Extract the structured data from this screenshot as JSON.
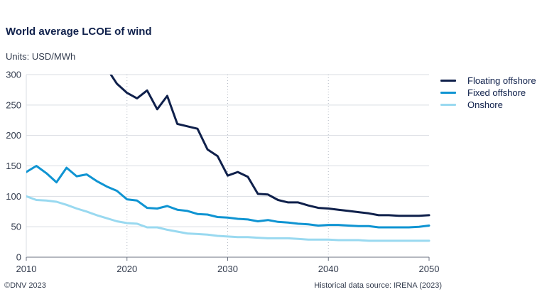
{
  "title": "World average LCOE of wind",
  "units": "Units: USD/MWh",
  "footer": {
    "copyright": "©DNV 2023",
    "source": "Historical data source: IRENA (2023)"
  },
  "chart_data": {
    "type": "line",
    "title": "World average LCOE of wind",
    "xlabel": "",
    "ylabel": "",
    "xlim": [
      2010,
      2050
    ],
    "ylim": [
      0,
      300
    ],
    "x_ticks": [
      2010,
      2020,
      2030,
      2040,
      2050
    ],
    "y_ticks": [
      0,
      50,
      100,
      150,
      200,
      250,
      300
    ],
    "x_tick_labels": [
      "2010",
      "2020",
      "2030",
      "2040",
      "2050"
    ],
    "y_tick_labels": [
      "0",
      "50",
      "100",
      "150",
      "200",
      "250",
      "300"
    ],
    "grid": "horizontal solid, vertical dotted at decades",
    "legend_position": "right",
    "series": [
      {
        "name": "Floating offshore",
        "color": "#0f204b",
        "x": [
          2018.4,
          2019,
          2020,
          2021,
          2022,
          2023,
          2024,
          2025,
          2026,
          2027,
          2028,
          2029,
          2030,
          2031,
          2032,
          2033,
          2034,
          2035,
          2036,
          2037,
          2038,
          2039,
          2040,
          2041,
          2042,
          2043,
          2044,
          2045,
          2046,
          2047,
          2048,
          2049,
          2050
        ],
        "y": [
          300,
          285,
          270,
          261,
          274,
          243,
          265,
          219,
          215,
          211,
          177,
          166,
          134,
          140,
          132,
          104,
          103,
          94,
          90,
          90,
          85,
          81,
          80,
          78,
          76,
          74,
          72,
          69,
          69,
          68,
          68,
          68,
          69
        ]
      },
      {
        "name": "Fixed offshore",
        "color": "#0f94d2",
        "x": [
          2010,
          2011,
          2012,
          2013,
          2014,
          2015,
          2016,
          2017,
          2018,
          2019,
          2020,
          2021,
          2022,
          2023,
          2024,
          2025,
          2026,
          2027,
          2028,
          2029,
          2030,
          2031,
          2032,
          2033,
          2034,
          2035,
          2036,
          2037,
          2038,
          2039,
          2040,
          2041,
          2042,
          2043,
          2044,
          2045,
          2046,
          2047,
          2048,
          2049,
          2050
        ],
        "y": [
          140,
          150,
          138,
          123,
          147,
          133,
          136,
          125,
          116,
          109,
          95,
          93,
          81,
          80,
          84,
          78,
          76,
          71,
          70,
          66,
          65,
          63,
          62,
          59,
          61,
          58,
          57,
          55,
          54,
          52,
          53,
          53,
          52,
          51,
          51,
          49,
          49,
          49,
          49,
          50,
          52
        ]
      },
      {
        "name": "Onshore",
        "color": "#99d9f0",
        "x": [
          2010,
          2011,
          2012,
          2013,
          2014,
          2015,
          2016,
          2017,
          2018,
          2019,
          2020,
          2021,
          2022,
          2023,
          2024,
          2025,
          2026,
          2027,
          2028,
          2029,
          2030,
          2031,
          2032,
          2033,
          2034,
          2035,
          2036,
          2037,
          2038,
          2039,
          2040,
          2041,
          2042,
          2043,
          2044,
          2045,
          2046,
          2047,
          2048,
          2049,
          2050
        ],
        "y": [
          100,
          94,
          93,
          91,
          86,
          80,
          75,
          69,
          64,
          59,
          56,
          55,
          49,
          49,
          45,
          42,
          39,
          38,
          37,
          35,
          34,
          33,
          33,
          32,
          31,
          31,
          31,
          30,
          29,
          29,
          29,
          28,
          28,
          28,
          27,
          27,
          27,
          27,
          27,
          27,
          27
        ]
      }
    ]
  }
}
